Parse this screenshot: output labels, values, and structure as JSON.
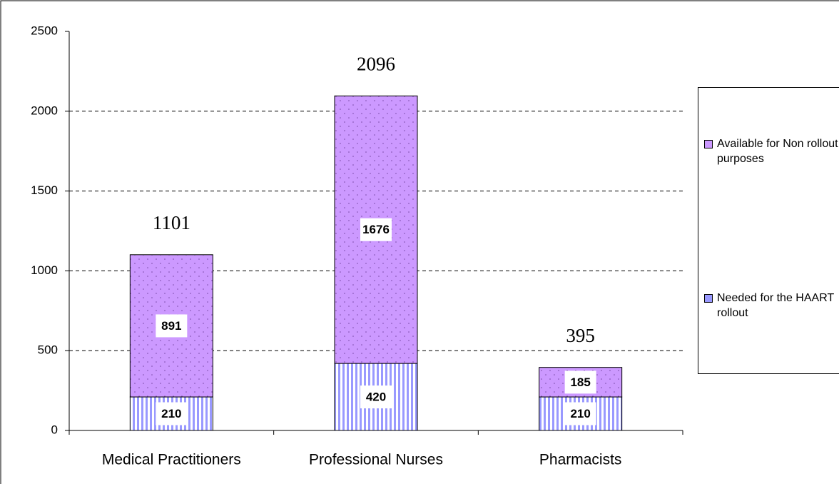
{
  "chart_data": {
    "type": "stacked_bar",
    "categories": [
      "Medical Practitioners",
      "Professional Nurses",
      "Pharmacists"
    ],
    "series": [
      {
        "name": "Needed for the HAART rollout",
        "color": "#9999ff",
        "values": [
          210,
          420,
          210
        ]
      },
      {
        "name": "Available for Non rollout purposes",
        "color": "#cc99ff",
        "values": [
          891,
          1676,
          185
        ]
      }
    ],
    "annotations": [
      "1101",
      "2096",
      "395"
    ],
    "ylim": [
      0,
      2500
    ],
    "yticks": [
      0,
      500,
      1000,
      1500,
      2000,
      2500
    ],
    "grid": true,
    "legend": "right"
  }
}
